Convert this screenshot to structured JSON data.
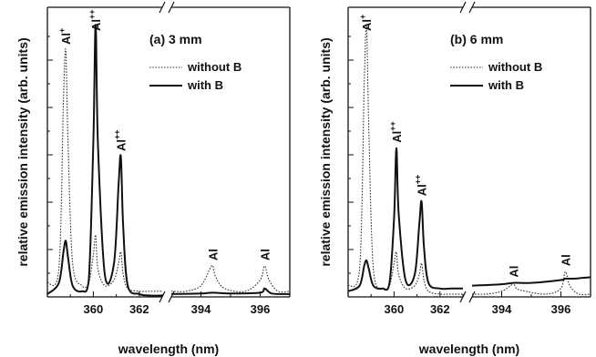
{
  "chart_data": [
    {
      "type": "line",
      "panel_label": "(a) 3 mm",
      "ylabel": "relative emission intensity (arb. units)",
      "xlabel": "wavelength (nm)",
      "x_ticks_left": [
        "360",
        "362"
      ],
      "x_ticks_right": [
        "394",
        "396"
      ],
      "x_segments": [
        [
          358.0,
          363.0
        ],
        [
          393.0,
          397.0
        ]
      ],
      "ylim": [
        0,
        1.0
      ],
      "legend": [
        {
          "name": "without B",
          "style": "dotted"
        },
        {
          "name": "with B",
          "style": "solid"
        }
      ],
      "peaks": [
        {
          "x": 358.8,
          "label": "Al",
          "sup": "+"
        },
        {
          "x": 360.1,
          "label": "Al",
          "sup": "++"
        },
        {
          "x": 361.2,
          "label": "Al",
          "sup": "++"
        },
        {
          "x": 394.4,
          "label": "Al",
          "sup": ""
        },
        {
          "x": 396.15,
          "label": "Al",
          "sup": ""
        }
      ],
      "series": [
        {
          "name": "without B",
          "style": "dotted",
          "x": [
            358.0,
            358.5,
            358.7,
            358.8,
            358.9,
            359.1,
            359.5,
            359.8,
            360.0,
            360.1,
            360.2,
            360.5,
            360.9,
            361.1,
            361.2,
            361.3,
            361.5,
            362.0,
            362.5,
            363.0,
            393.0,
            393.5,
            394.0,
            394.3,
            394.4,
            394.5,
            394.8,
            395.5,
            396.0,
            396.15,
            396.3,
            396.6,
            397.0
          ],
          "y": [
            0.05,
            0.1,
            0.7,
            0.88,
            0.55,
            0.12,
            0.04,
            0.05,
            0.15,
            0.22,
            0.1,
            0.04,
            0.06,
            0.12,
            0.16,
            0.08,
            0.03,
            0.02,
            0.02,
            0.02,
            0.02,
            0.02,
            0.04,
            0.1,
            0.11,
            0.07,
            0.03,
            0.02,
            0.06,
            0.11,
            0.06,
            0.02,
            0.02
          ]
        },
        {
          "name": "with B",
          "style": "solid",
          "x": [
            358.0,
            358.5,
            358.7,
            358.8,
            358.9,
            359.1,
            359.5,
            359.8,
            360.0,
            360.1,
            360.2,
            360.5,
            360.9,
            361.1,
            361.2,
            361.3,
            361.5,
            362.0,
            362.5,
            363.0,
            393.0,
            394.0,
            394.4,
            395.0,
            396.0,
            396.15,
            396.4,
            397.0
          ],
          "y": [
            0.01,
            0.05,
            0.16,
            0.2,
            0.14,
            0.04,
            0.02,
            0.06,
            0.55,
            0.97,
            0.55,
            0.08,
            0.12,
            0.4,
            0.5,
            0.25,
            0.04,
            0.01,
            0.005,
            0.005,
            0.01,
            0.012,
            0.015,
            0.012,
            0.015,
            0.03,
            0.012,
            0.01
          ]
        }
      ]
    },
    {
      "type": "line",
      "panel_label": "(b) 6 mm",
      "ylabel": "relative emission intensity (arb. units)",
      "xlabel": "wavelength (nm)",
      "x_ticks_left": [
        "360",
        "362"
      ],
      "x_ticks_right": [
        "394",
        "396"
      ],
      "x_segments": [
        [
          358.0,
          363.0
        ],
        [
          393.0,
          397.0
        ]
      ],
      "ylim": [
        0,
        1.0
      ],
      "legend": [
        {
          "name": "without B",
          "style": "dotted"
        },
        {
          "name": "with B",
          "style": "solid"
        }
      ],
      "peaks": [
        {
          "x": 358.8,
          "label": "Al",
          "sup": "+"
        },
        {
          "x": 360.1,
          "label": "Al",
          "sup": "++"
        },
        {
          "x": 361.2,
          "label": "Al",
          "sup": "++"
        },
        {
          "x": 394.4,
          "label": "Al",
          "sup": ""
        },
        {
          "x": 396.15,
          "label": "Al",
          "sup": ""
        }
      ],
      "series": [
        {
          "name": "without B",
          "style": "dotted",
          "x": [
            358.0,
            358.5,
            358.7,
            358.8,
            358.9,
            359.1,
            359.5,
            359.8,
            360.0,
            360.1,
            360.2,
            360.5,
            360.9,
            361.1,
            361.2,
            361.3,
            361.5,
            362.0,
            362.5,
            363.0,
            393.0,
            393.5,
            394.0,
            394.3,
            394.4,
            394.5,
            394.8,
            395.5,
            396.0,
            396.15,
            396.3,
            396.6,
            397.0
          ],
          "y": [
            0.04,
            0.1,
            0.75,
            0.97,
            0.6,
            0.1,
            0.03,
            0.04,
            0.12,
            0.16,
            0.08,
            0.03,
            0.04,
            0.08,
            0.12,
            0.06,
            0.02,
            0.01,
            0.01,
            0.01,
            0.01,
            0.01,
            0.02,
            0.04,
            0.05,
            0.03,
            0.02,
            0.01,
            0.03,
            0.09,
            0.04,
            0.01,
            0.01
          ]
        },
        {
          "name": "with B",
          "style": "solid",
          "x": [
            358.0,
            358.5,
            358.7,
            358.8,
            358.9,
            359.1,
            359.5,
            359.8,
            360.0,
            360.1,
            360.2,
            360.5,
            360.9,
            361.1,
            361.2,
            361.3,
            361.5,
            362.0,
            362.5,
            363.0,
            393.0,
            394.0,
            394.4,
            395.0,
            396.0,
            396.15,
            396.4,
            397.0
          ],
          "y": [
            0.02,
            0.04,
            0.11,
            0.13,
            0.1,
            0.04,
            0.03,
            0.05,
            0.28,
            0.53,
            0.3,
            0.06,
            0.08,
            0.26,
            0.34,
            0.18,
            0.05,
            0.03,
            0.03,
            0.03,
            0.04,
            0.045,
            0.05,
            0.05,
            0.06,
            0.065,
            0.065,
            0.07
          ]
        }
      ]
    }
  ]
}
